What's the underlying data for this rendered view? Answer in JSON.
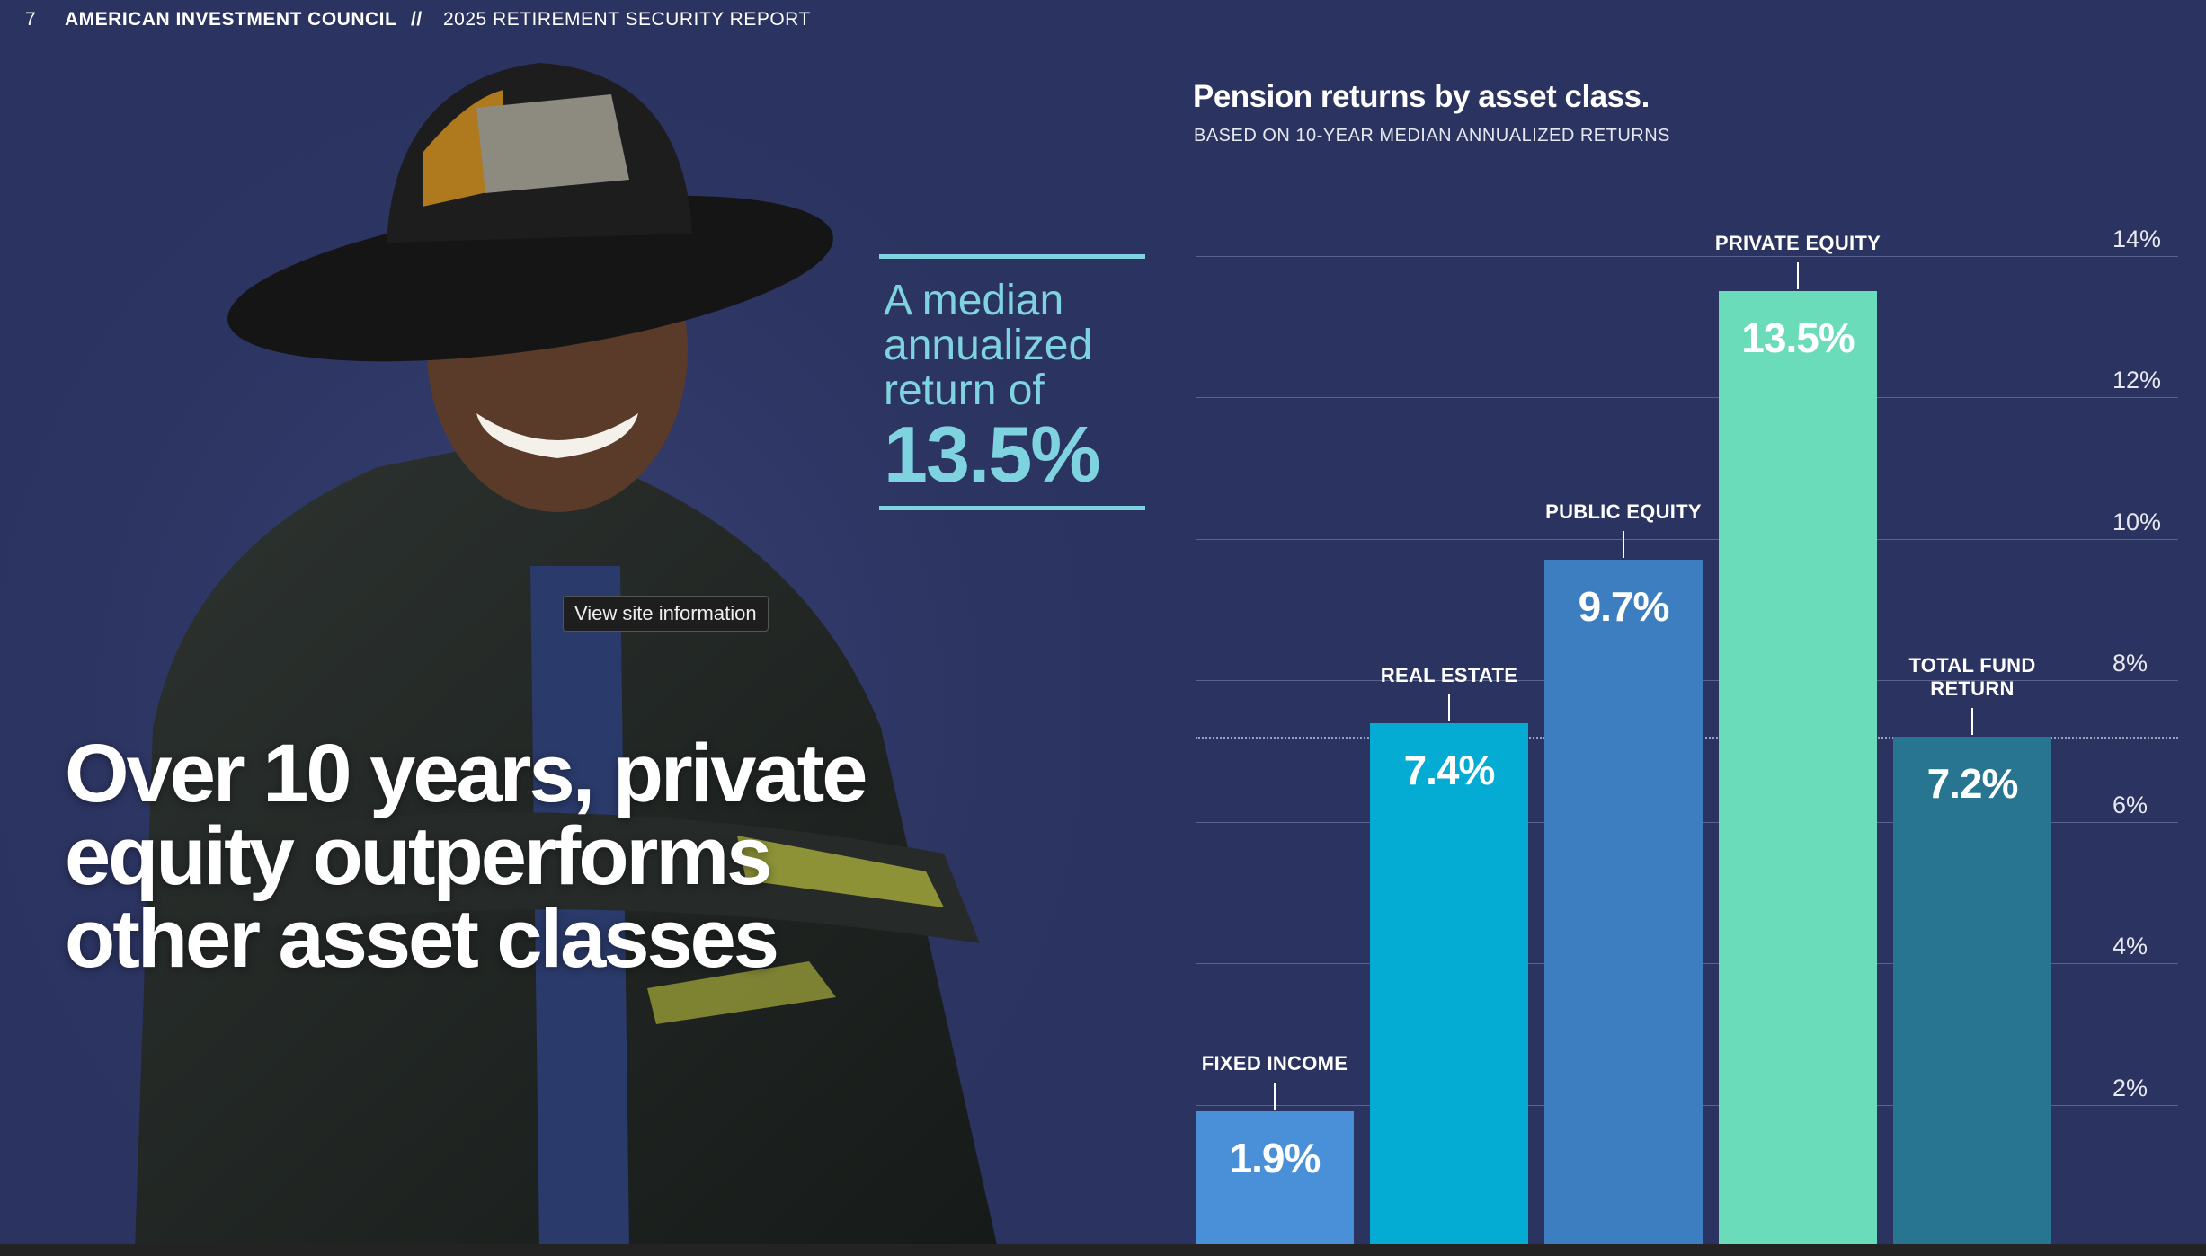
{
  "header": {
    "page": "7",
    "org": "AMERICAN INVESTMENT COUNCIL",
    "separator": "//",
    "report": "2025 RETIREMENT SECURITY REPORT"
  },
  "headline": "Over 10 years, private equity outperforms other asset classes",
  "callout": {
    "text": "A median annualized return of",
    "figure": "13.5%"
  },
  "tooltip": "View site information",
  "chart_data": {
    "type": "bar",
    "title": "Pension returns by asset class.",
    "subtitle": "BASED ON 10-YEAR MEDIAN ANNUALIZED RETURNS",
    "categories": [
      "FIXED INCOME",
      "REAL ESTATE",
      "PUBLIC EQUITY",
      "PRIVATE EQUITY",
      "TOTAL FUND RETURN"
    ],
    "values": [
      1.9,
      7.4,
      9.7,
      13.5,
      7.2
    ],
    "value_labels": [
      "1.9%",
      "7.4%",
      "9.7%",
      "13.5%",
      "7.2%"
    ],
    "colors": [
      "#4a90d9",
      "#04acd3",
      "#3c7ec0",
      "#6adcba",
      "#277591"
    ],
    "reference_line": 7.2,
    "ylim": [
      0,
      14
    ],
    "yticks": [
      {
        "value": 2,
        "label": "2%"
      },
      {
        "value": 4,
        "label": "4%"
      },
      {
        "value": 6,
        "label": "6%"
      },
      {
        "value": 8,
        "label": "8%"
      },
      {
        "value": 10,
        "label": "10%"
      },
      {
        "value": 12,
        "label": "12%"
      },
      {
        "value": 14,
        "label": "14%"
      }
    ],
    "grid": true
  }
}
